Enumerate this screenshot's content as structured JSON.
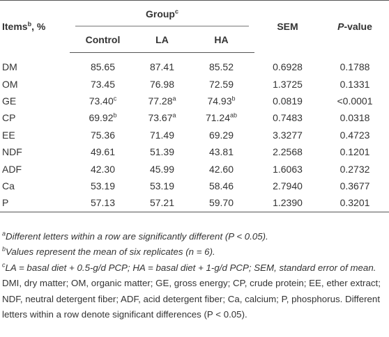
{
  "header": {
    "items": {
      "text": "Items",
      "sup": "b",
      "suffix": ", %"
    },
    "group": {
      "text": "Group",
      "sup": "c"
    },
    "sem": "SEM",
    "pvalue": {
      "italic": "P",
      "text": "-value"
    },
    "subgroups": [
      "Control",
      "LA",
      "HA"
    ]
  },
  "table": {
    "rows": [
      {
        "label": "DM",
        "cells": [
          {
            "text": "85.65"
          },
          {
            "text": "87.41"
          },
          {
            "text": "85.52"
          },
          {
            "text": "0.6928"
          },
          {
            "text": "0.1788"
          }
        ]
      },
      {
        "label": "OM",
        "cells": [
          {
            "text": "73.45"
          },
          {
            "text": "76.98"
          },
          {
            "text": "72.59"
          },
          {
            "text": "1.3725"
          },
          {
            "text": "0.1331"
          }
        ]
      },
      {
        "label": "GE",
        "cells": [
          {
            "text": "73.40",
            "sup": "c"
          },
          {
            "text": "77.28",
            "sup": "a"
          },
          {
            "text": "74.93",
            "sup": "b"
          },
          {
            "text": "0.0819"
          },
          {
            "text": "<0.0001"
          }
        ]
      },
      {
        "label": "CP",
        "cells": [
          {
            "text": "69.92",
            "sup": "b"
          },
          {
            "text": "73.67",
            "sup": "a"
          },
          {
            "text": "71.24",
            "sup": "ab"
          },
          {
            "text": "0.7483"
          },
          {
            "text": "0.0318"
          }
        ]
      },
      {
        "label": "EE",
        "cells": [
          {
            "text": "75.36"
          },
          {
            "text": "71.49"
          },
          {
            "text": "69.29"
          },
          {
            "text": "3.3277"
          },
          {
            "text": "0.4723"
          }
        ]
      },
      {
        "label": "NDF",
        "cells": [
          {
            "text": "49.61"
          },
          {
            "text": "51.39"
          },
          {
            "text": "43.81"
          },
          {
            "text": "2.2568"
          },
          {
            "text": "0.1201"
          }
        ]
      },
      {
        "label": "ADF",
        "cells": [
          {
            "text": "42.30"
          },
          {
            "text": "45.99"
          },
          {
            "text": "42.60"
          },
          {
            "text": "1.6063"
          },
          {
            "text": "0.2732"
          }
        ]
      },
      {
        "label": "Ca",
        "cells": [
          {
            "text": "53.19"
          },
          {
            "text": "53.19"
          },
          {
            "text": "58.46"
          },
          {
            "text": "2.7940"
          },
          {
            "text": "0.3677"
          }
        ]
      },
      {
        "label": "P",
        "cells": [
          {
            "text": "57.13"
          },
          {
            "text": "57.21"
          },
          {
            "text": "59.70"
          },
          {
            "text": "1.2390"
          },
          {
            "text": "0.3201"
          }
        ]
      }
    ]
  },
  "notes": [
    {
      "sup": "a",
      "text": "Different letters within a row are significantly different (P < 0.05)."
    },
    {
      "sup": "b",
      "text": "Values represent the mean of six replicates (n = 6)."
    },
    {
      "sup": "c",
      "text": "LA = basal diet + 0.5-g/d PCP; HA = basal diet + 1-g/d PCP; SEM, standard error of mean."
    },
    {
      "text": "DMI, dry matter; OM, organic matter; GE, gross energy; CP, crude protein; EE, ether extract; NDF, neutral detergent fiber; ADF, acid detergent fiber; Ca, calcium; P, phosphorus. Different letters within a row denote significant differences (P < 0.05)."
    }
  ]
}
